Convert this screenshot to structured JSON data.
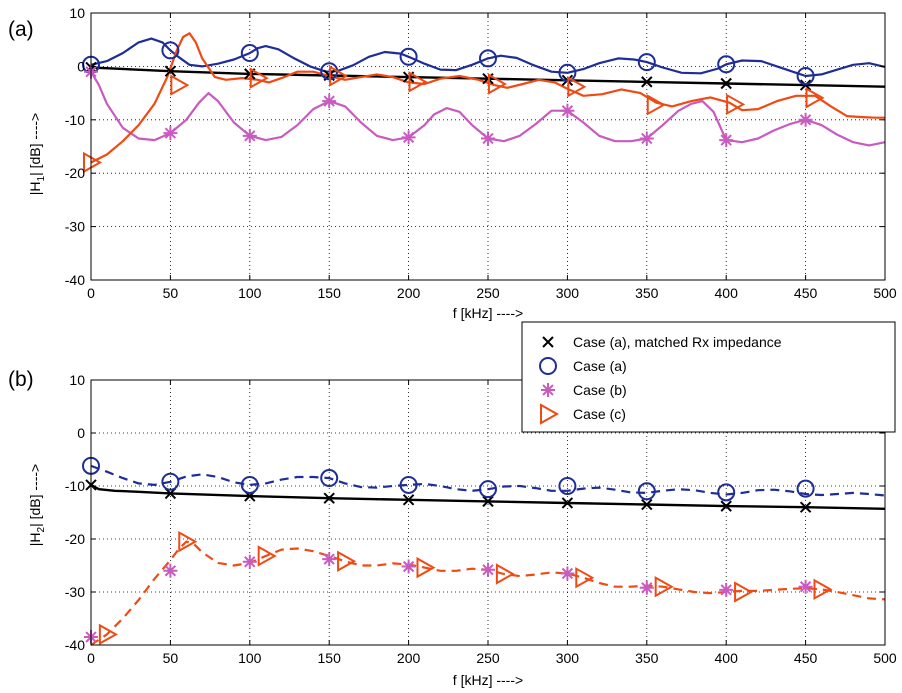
{
  "chart_data": [
    {
      "type": "line",
      "panel_label": "(a)",
      "xlabel": "f [kHz] ---->",
      "ylabel": "|H",
      "ylabel_sub": "1",
      "ylabel_rest": "| [dB] ---->",
      "xlim": [
        0,
        500
      ],
      "ylim": [
        -40,
        10
      ],
      "xticks": [
        0,
        50,
        100,
        150,
        200,
        250,
        300,
        350,
        400,
        450,
        500
      ],
      "yticks": [
        -40,
        -30,
        -20,
        -10,
        0,
        10
      ],
      "grid": true,
      "series": [
        {
          "name": "Case (a), matched Rx impedance",
          "color": "#000000",
          "style": "solid",
          "marker": "x",
          "x": [
            0,
            50,
            100,
            150,
            200,
            250,
            300,
            350,
            400,
            450,
            500
          ],
          "y": [
            -0.2,
            -0.9,
            -1.4,
            -1.7,
            -2.0,
            -2.3,
            -2.6,
            -2.9,
            -3.2,
            -3.5,
            -3.8
          ],
          "marker_x": [
            0,
            50,
            100,
            150,
            200,
            250,
            300,
            350,
            400,
            450
          ]
        },
        {
          "name": "Case (a)",
          "color": "#1f2d96",
          "style": "solid",
          "marker": "o",
          "x": [
            0,
            10,
            20,
            30,
            38,
            45,
            50,
            55,
            62,
            70,
            80,
            90,
            100,
            105,
            110,
            118,
            128,
            138,
            148,
            155,
            165,
            175,
            185,
            195,
            200,
            210,
            220,
            230,
            240,
            250,
            258,
            268,
            278,
            290,
            300,
            310,
            320,
            332,
            342,
            350,
            360,
            372,
            384,
            395,
            400,
            410,
            422,
            432,
            444,
            450,
            460,
            470,
            480,
            490,
            500
          ],
          "y": [
            0.3,
            1.0,
            2.5,
            4.5,
            5.2,
            4.5,
            3.0,
            1.8,
            0.3,
            0.0,
            0.5,
            1.3,
            2.5,
            3.4,
            3.8,
            3.2,
            1.5,
            0.0,
            -1.0,
            -0.9,
            0.2,
            1.8,
            2.7,
            2.4,
            1.8,
            0.5,
            -0.6,
            -0.7,
            0.3,
            1.5,
            2.0,
            1.6,
            0.3,
            -1.0,
            -1.2,
            -0.5,
            0.6,
            1.5,
            1.3,
            0.8,
            -0.2,
            -1.2,
            -1.3,
            -0.4,
            0.4,
            1.1,
            1.0,
            0.0,
            -1.2,
            -1.8,
            -1.5,
            -0.6,
            0.3,
            0.6,
            -0.1
          ],
          "marker_x": [
            0,
            50,
            100,
            150,
            200,
            250,
            300,
            350,
            400,
            450
          ],
          "marker_y": [
            0.3,
            3.0,
            2.5,
            -0.9,
            1.8,
            1.5,
            -1.2,
            0.8,
            0.4,
            -1.8
          ]
        },
        {
          "name": "Case (b)",
          "color": "#c85ac0",
          "style": "solid",
          "marker": "*",
          "x": [
            0,
            5,
            10,
            20,
            30,
            40,
            50,
            60,
            68,
            74,
            80,
            90,
            100,
            110,
            120,
            130,
            140,
            150,
            160,
            170,
            180,
            190,
            200,
            210,
            216,
            224,
            232,
            240,
            250,
            260,
            270,
            280,
            290,
            300,
            310,
            320,
            330,
            340,
            350,
            360,
            370,
            378,
            385,
            392,
            400,
            410,
            420,
            430,
            440,
            450,
            460,
            470,
            480,
            490,
            500
          ],
          "y": [
            -1.0,
            -3.5,
            -7.0,
            -11.5,
            -13.5,
            -13.8,
            -12.5,
            -10.0,
            -6.8,
            -5.0,
            -6.5,
            -10.5,
            -13.0,
            -13.8,
            -13.2,
            -11.0,
            -8.0,
            -6.5,
            -7.5,
            -10.5,
            -13.0,
            -13.8,
            -13.3,
            -11.0,
            -9.0,
            -7.8,
            -8.5,
            -11.0,
            -13.5,
            -14.0,
            -13.0,
            -10.8,
            -8.3,
            -8.3,
            -10.5,
            -13.0,
            -14.0,
            -14.0,
            -13.5,
            -11.0,
            -8.3,
            -7.0,
            -6.5,
            -8.5,
            -13.8,
            -14.2,
            -13.5,
            -12.0,
            -10.8,
            -10.0,
            -11.0,
            -12.8,
            -14.2,
            -14.8,
            -14.2
          ],
          "marker_x": [
            0,
            50,
            100,
            150,
            200,
            250,
            300,
            350,
            400,
            450
          ],
          "marker_y": [
            -1.0,
            -12.5,
            -13.0,
            -6.5,
            -13.3,
            -13.5,
            -8.3,
            -13.5,
            -13.8,
            -10.0
          ]
        },
        {
          "name": "Case (c)",
          "color": "#f04a14",
          "style": "solid",
          "marker": ">",
          "x": [
            0,
            10,
            20,
            30,
            40,
            48,
            54,
            58,
            62,
            66,
            70,
            78,
            85,
            95,
            105,
            112,
            120,
            130,
            140,
            150,
            160,
            170,
            180,
            190,
            200,
            210,
            220,
            232,
            244,
            254,
            262,
            272,
            282,
            292,
            300,
            310,
            322,
            334,
            346,
            356,
            366,
            378,
            390,
            402,
            410,
            420,
            432,
            444,
            456,
            466,
            476,
            486,
            494,
            500
          ],
          "y": [
            -18.0,
            -16.5,
            -14.0,
            -11.0,
            -7.0,
            -2.0,
            3.0,
            5.5,
            6.2,
            4.5,
            1.5,
            -2.0,
            -2.5,
            -2.2,
            -2.5,
            -3.0,
            -2.2,
            -1.0,
            -1.0,
            -1.8,
            -2.5,
            -2.0,
            -1.5,
            -2.0,
            -3.0,
            -3.3,
            -2.3,
            -1.8,
            -2.5,
            -3.5,
            -4.0,
            -3.3,
            -2.5,
            -3.0,
            -4.2,
            -5.5,
            -5.2,
            -4.3,
            -5.0,
            -6.8,
            -7.5,
            -6.5,
            -5.8,
            -6.8,
            -8.2,
            -8.0,
            -6.5,
            -5.5,
            -5.5,
            -7.5,
            -9.3,
            -9.5,
            -9.6,
            -9.6
          ],
          "marker_x": [
            0,
            55,
            105,
            155,
            205,
            255,
            305,
            355,
            405,
            455
          ],
          "marker_y": [
            -18.0,
            -3.5,
            -2.2,
            -1.8,
            -2.9,
            -3.3,
            -3.8,
            -7.2,
            -7.1,
            -5.9
          ]
        }
      ]
    },
    {
      "type": "line",
      "panel_label": "(b)",
      "xlabel": "f [kHz] ---->",
      "ylabel": "|H",
      "ylabel_sub": "2",
      "ylabel_rest": "| [dB] ---->",
      "xlim": [
        0,
        500
      ],
      "ylim": [
        -40,
        10
      ],
      "xticks": [
        0,
        50,
        100,
        150,
        200,
        250,
        300,
        350,
        400,
        450,
        500
      ],
      "yticks": [
        -40,
        -30,
        -20,
        -10,
        0,
        10
      ],
      "grid": true,
      "series": [
        {
          "name": "Case (a), matched Rx impedance",
          "color": "#000000",
          "style": "solid",
          "marker": "x",
          "x": [
            0,
            5,
            15,
            30,
            50,
            100,
            150,
            200,
            250,
            300,
            350,
            400,
            450,
            500
          ],
          "y": [
            -9.8,
            -10.6,
            -10.9,
            -11.1,
            -11.4,
            -11.9,
            -12.3,
            -12.6,
            -12.9,
            -13.2,
            -13.5,
            -13.8,
            -14.0,
            -14.3
          ],
          "marker_x": [
            0,
            50,
            100,
            150,
            200,
            250,
            300,
            350,
            400,
            450
          ]
        },
        {
          "name": "Case (a)",
          "color": "#1f2d96",
          "style": "dashed",
          "marker": "o",
          "x": [
            0,
            10,
            20,
            30,
            40,
            50,
            60,
            70,
            80,
            90,
            100,
            110,
            120,
            130,
            140,
            150,
            160,
            170,
            180,
            190,
            200,
            210,
            220,
            230,
            240,
            250,
            260,
            270,
            280,
            290,
            300,
            310,
            320,
            330,
            340,
            350,
            360,
            370,
            380,
            390,
            400,
            410,
            420,
            430,
            440,
            450,
            460,
            470,
            480,
            490,
            500
          ],
          "y": [
            -6.2,
            -7.3,
            -8.5,
            -9.5,
            -9.8,
            -9.2,
            -8.2,
            -7.8,
            -8.3,
            -9.3,
            -9.8,
            -9.5,
            -8.8,
            -8.3,
            -8.3,
            -8.5,
            -9.5,
            -10.2,
            -10.3,
            -10.0,
            -9.8,
            -9.6,
            -10.0,
            -10.6,
            -10.9,
            -10.6,
            -10.1,
            -10.0,
            -10.4,
            -10.9,
            -10.9,
            -10.5,
            -10.3,
            -10.7,
            -11.2,
            -11.3,
            -10.9,
            -10.6,
            -10.8,
            -11.3,
            -11.6,
            -11.3,
            -10.8,
            -10.7,
            -11.0,
            -11.5,
            -11.7,
            -11.5,
            -11.3,
            -11.5,
            -11.8
          ],
          "marker_x": [
            0,
            50,
            100,
            150,
            200,
            250,
            300,
            350,
            400,
            450
          ],
          "marker_y": [
            -6.2,
            -9.2,
            -9.8,
            -8.5,
            -9.8,
            -10.6,
            -10.0,
            -11.0,
            -11.2,
            -10.5
          ]
        },
        {
          "name": "Case (b)",
          "color": "#c85ac0",
          "style": "none",
          "marker": "*",
          "marker_x": [
            0,
            50,
            100,
            150,
            200,
            250,
            300,
            350,
            400,
            450
          ],
          "marker_y": [
            -38.5,
            -26.0,
            -24.3,
            -23.8,
            -25.2,
            -25.8,
            -26.5,
            -29.2,
            -29.6,
            -29.0
          ]
        },
        {
          "name": "Case (c)",
          "color": "#f04a14",
          "style": "dashed",
          "marker": ">",
          "x": [
            0,
            10,
            20,
            30,
            40,
            50,
            55,
            60,
            65,
            70,
            80,
            90,
            100,
            110,
            120,
            130,
            140,
            150,
            160,
            170,
            180,
            190,
            200,
            210,
            220,
            230,
            240,
            250,
            260,
            270,
            280,
            290,
            300,
            310,
            320,
            330,
            340,
            350,
            360,
            370,
            380,
            390,
            400,
            410,
            420,
            430,
            440,
            450,
            460,
            470,
            480,
            490,
            500
          ],
          "y": [
            -40.0,
            -38.0,
            -35.0,
            -31.5,
            -27.5,
            -24.0,
            -22.0,
            -20.5,
            -21.0,
            -22.5,
            -24.5,
            -25.0,
            -24.5,
            -23.2,
            -22.0,
            -21.8,
            -22.3,
            -23.2,
            -24.2,
            -25.0,
            -25.0,
            -24.6,
            -24.8,
            -25.4,
            -26.0,
            -26.0,
            -25.6,
            -25.8,
            -26.6,
            -27.0,
            -26.7,
            -26.3,
            -26.5,
            -27.3,
            -28.3,
            -29.0,
            -29.0,
            -28.8,
            -29.0,
            -29.5,
            -30.0,
            -30.2,
            -30.0,
            -29.8,
            -29.8,
            -29.6,
            -29.4,
            -29.3,
            -29.5,
            -30.0,
            -30.6,
            -31.2,
            -31.4
          ],
          "marker_x": [
            10,
            60,
            110,
            160,
            210,
            260,
            310,
            360,
            410,
            460
          ],
          "marker_y": [
            -38.0,
            -20.5,
            -23.2,
            -24.2,
            -25.4,
            -26.6,
            -27.3,
            -29.0,
            -30.0,
            -29.5
          ]
        }
      ]
    }
  ],
  "legend": {
    "placement": "between-panels-right",
    "entries": [
      {
        "label": "Case (a), matched Rx impedance",
        "marker": "x",
        "color": "#000000"
      },
      {
        "label": "Case (a)",
        "marker": "o",
        "color": "#1f2d96"
      },
      {
        "label": "Case (b)",
        "marker": "*",
        "color": "#c85ac0"
      },
      {
        "label": "Case (c)",
        "marker": ">",
        "color": "#f04a14"
      }
    ]
  }
}
